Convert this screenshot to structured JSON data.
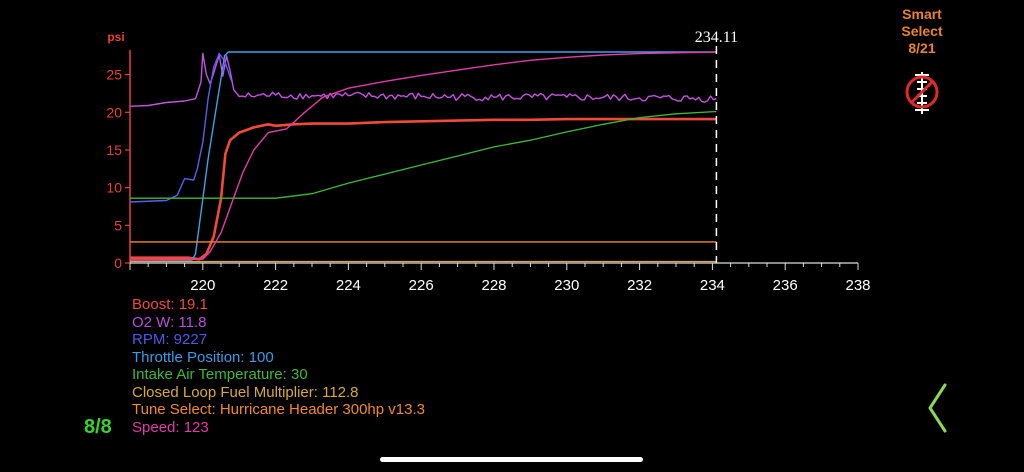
{
  "chart_data": {
    "type": "line",
    "ylabel": "psi",
    "xlim": [
      218,
      238
    ],
    "ylim": [
      0,
      28
    ],
    "x_ticks": [
      220,
      222,
      224,
      226,
      228,
      230,
      232,
      234,
      236,
      238
    ],
    "y_ticks": [
      0,
      5,
      10,
      15,
      20,
      25
    ],
    "cursor_x": 234.11,
    "cursor_label": "234.11",
    "series": [
      {
        "name": "Boost",
        "color": "#f04a3a",
        "width": 2.6,
        "points": [
          [
            218,
            0.7
          ],
          [
            219.6,
            0.7
          ],
          [
            219.9,
            0.5
          ],
          [
            220.1,
            1.2
          ],
          [
            220.3,
            3.5
          ],
          [
            220.5,
            8.5
          ],
          [
            220.62,
            14.5
          ],
          [
            220.75,
            16.3
          ],
          [
            221,
            17.3
          ],
          [
            221.4,
            18.0
          ],
          [
            221.8,
            18.4
          ],
          [
            222,
            18.2
          ],
          [
            222.5,
            18.4
          ],
          [
            223,
            18.5
          ],
          [
            223.5,
            18.5
          ],
          [
            224,
            18.5
          ],
          [
            224.5,
            18.6
          ],
          [
            225,
            18.7
          ],
          [
            226,
            18.8
          ],
          [
            227,
            18.9
          ],
          [
            228,
            19.0
          ],
          [
            229,
            19.0
          ],
          [
            230,
            19.1
          ],
          [
            231,
            19.1
          ],
          [
            232,
            19.1
          ],
          [
            233,
            19.1
          ],
          [
            234.11,
            19.1
          ]
        ]
      },
      {
        "name": "O2 W",
        "color": "#c452e0",
        "width": 1.4,
        "noise": 0.5,
        "points": [
          [
            218,
            20.8
          ],
          [
            218.5,
            20.9
          ],
          [
            219,
            21.3
          ],
          [
            219.5,
            21.5
          ],
          [
            219.8,
            21.8
          ],
          [
            219.95,
            24
          ],
          [
            220,
            27.8
          ],
          [
            220.1,
            25
          ],
          [
            220.2,
            23.8
          ],
          [
            220.3,
            25.2
          ],
          [
            220.45,
            27.6
          ],
          [
            220.55,
            24.8
          ],
          [
            220.65,
            27.5
          ],
          [
            220.75,
            25.5
          ],
          [
            220.85,
            23
          ],
          [
            221,
            22.1
          ],
          [
            222,
            22.3
          ],
          [
            223,
            22.2
          ],
          [
            224,
            22.2
          ],
          [
            226,
            22.1
          ],
          [
            228,
            22.0
          ],
          [
            230,
            22.0
          ],
          [
            232,
            21.9
          ],
          [
            234.11,
            21.8
          ]
        ]
      },
      {
        "name": "RPM",
        "color": "#5a5ef0",
        "width": 1.4,
        "points": [
          [
            218,
            8.1
          ],
          [
            219,
            8.3
          ],
          [
            219.3,
            9
          ],
          [
            219.5,
            11.2
          ],
          [
            219.75,
            11.0
          ],
          [
            219.85,
            12.5
          ],
          [
            220,
            16
          ],
          [
            220.15,
            22
          ],
          [
            220.3,
            26
          ],
          [
            220.45,
            27.8
          ],
          [
            220.6,
            26.8
          ],
          [
            220.8,
            24
          ]
        ]
      },
      {
        "name": "Throttle Position",
        "color": "#3ca0ea",
        "width": 1.4,
        "points": [
          [
            218,
            0.4
          ],
          [
            219.7,
            0.4
          ],
          [
            219.8,
            1.2
          ],
          [
            220.15,
            14
          ],
          [
            220.6,
            27.5
          ],
          [
            220.7,
            28
          ],
          [
            234.11,
            28
          ]
        ]
      },
      {
        "name": "Intake Air Temperature",
        "color": "#3fb83a",
        "width": 1.3,
        "points": [
          [
            218,
            8.6
          ],
          [
            222,
            8.6
          ],
          [
            223,
            9.2
          ],
          [
            224,
            10.6
          ],
          [
            225,
            11.8
          ],
          [
            226,
            13.0
          ],
          [
            227,
            14.2
          ],
          [
            228,
            15.4
          ],
          [
            229,
            16.3
          ],
          [
            230,
            17.4
          ],
          [
            231,
            18.4
          ],
          [
            232,
            19.3
          ],
          [
            233,
            19.8
          ],
          [
            234.11,
            20.1
          ]
        ]
      },
      {
        "name": "Closed Loop Fuel Multiplier",
        "color": "#d8a93a",
        "width": 1.2,
        "points": [
          [
            218,
            0.2
          ],
          [
            234.11,
            0.2
          ]
        ]
      },
      {
        "name": "Tune Select",
        "color": "#f08a2a",
        "width": 1.4,
        "points": [
          [
            218,
            2.8
          ],
          [
            234.11,
            2.8
          ]
        ]
      },
      {
        "name": "Speed",
        "color": "#e03ca8",
        "width": 1.4,
        "points": [
          [
            218,
            0.4
          ],
          [
            220,
            0.5
          ],
          [
            220.2,
            1.5
          ],
          [
            220.5,
            4
          ],
          [
            220.8,
            8
          ],
          [
            221.1,
            12
          ],
          [
            221.4,
            15
          ],
          [
            221.8,
            17.3
          ],
          [
            222.3,
            17.8
          ],
          [
            222.8,
            20.0
          ],
          [
            223.3,
            22.0
          ],
          [
            224,
            23.2
          ],
          [
            225,
            24.1
          ],
          [
            226,
            24.9
          ],
          [
            227,
            25.6
          ],
          [
            228,
            26.3
          ],
          [
            229,
            26.9
          ],
          [
            230,
            27.3
          ],
          [
            231,
            27.6
          ],
          [
            232,
            27.8
          ],
          [
            233,
            27.9
          ],
          [
            234.11,
            28.0
          ]
        ]
      }
    ]
  },
  "legend": [
    {
      "name": "Boost",
      "value": "19.1",
      "color": "#f04a3a",
      "text": "Boost: 19.1"
    },
    {
      "name": "O2 W",
      "value": "11.8",
      "color": "#b64fd8",
      "text": "O2 W: 11.8"
    },
    {
      "name": "RPM",
      "value": "9227",
      "color": "#4f59e8",
      "text": "RPM: 9227"
    },
    {
      "name": "Throttle Position",
      "value": "100",
      "color": "#3b9be6",
      "text": "Throttle Position: 100"
    },
    {
      "name": "Intake Air Temperature",
      "value": "30",
      "color": "#3fb83a",
      "text": "Intake Air Temperature: 30"
    },
    {
      "name": "Closed Loop Fuel Multiplier",
      "value": "112.8",
      "color": "#d8a93a",
      "text": "Closed Loop Fuel Multiplier: 112.8"
    },
    {
      "name": "Tune Select",
      "value": "Hurricane Header 300hp v13.3",
      "color": "#f08a2a",
      "text": "Tune Select: Hurricane Header 300hp v13.3"
    },
    {
      "name": "Speed",
      "value": "123",
      "color": "#e03ca8",
      "text": "Speed: 123"
    }
  ],
  "smart_select": {
    "line1": "Smart",
    "line2": "Select",
    "count": "8/21",
    "icon": "no-select-icon"
  },
  "page_indicator": "8/8",
  "nav": {
    "icon": "chevron-left-icon"
  },
  "colors": {
    "axis": "#e8432f",
    "x_axis": "#dddddd",
    "page_indicator": "#39d12f",
    "smart": "#e8822c",
    "chevron": "#8fd65a"
  }
}
